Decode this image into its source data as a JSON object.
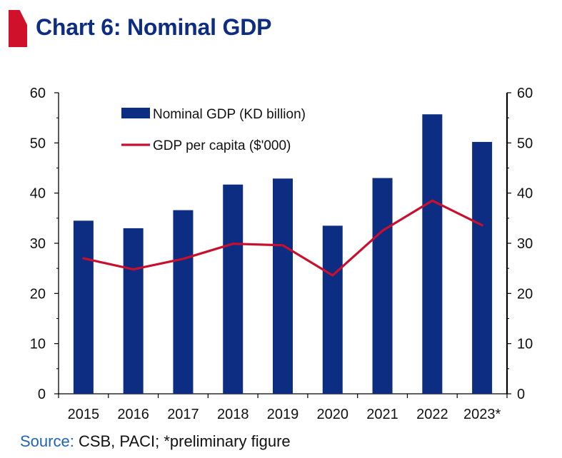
{
  "title": "Chart 6: Nominal GDP",
  "source": {
    "label": "Source:",
    "text": " CSB, PACI; *preliminary figure"
  },
  "colors": {
    "bar": "#0d2d82",
    "line": "#c8102e",
    "axis": "#000000",
    "title": "#0d2d82",
    "marker": "#d0112b"
  },
  "chart_data": {
    "type": "bar",
    "categories": [
      "2015",
      "2016",
      "2017",
      "2018",
      "2019",
      "2020",
      "2021",
      "2022",
      "2023*"
    ],
    "series": [
      {
        "name": "Nominal GDP (KD billion)",
        "kind": "bar",
        "axis": "left",
        "values": [
          34.5,
          33.0,
          36.6,
          41.7,
          42.9,
          33.5,
          43.0,
          55.7,
          50.2
        ]
      },
      {
        "name": "GDP per capita ($'000)",
        "kind": "line",
        "axis": "right",
        "values": [
          27.0,
          24.8,
          26.9,
          29.9,
          29.6,
          23.6,
          32.5,
          38.5,
          33.6
        ]
      }
    ],
    "ylim": [
      0,
      60
    ],
    "y2lim": [
      0,
      60
    ],
    "yticks": [
      0,
      10,
      20,
      30,
      40,
      50,
      60
    ],
    "y2ticks": [
      0,
      10,
      20,
      30,
      40,
      50,
      60
    ],
    "xlabel": "",
    "ylabel": "",
    "y2label": "",
    "legend": "top-left-inside"
  }
}
